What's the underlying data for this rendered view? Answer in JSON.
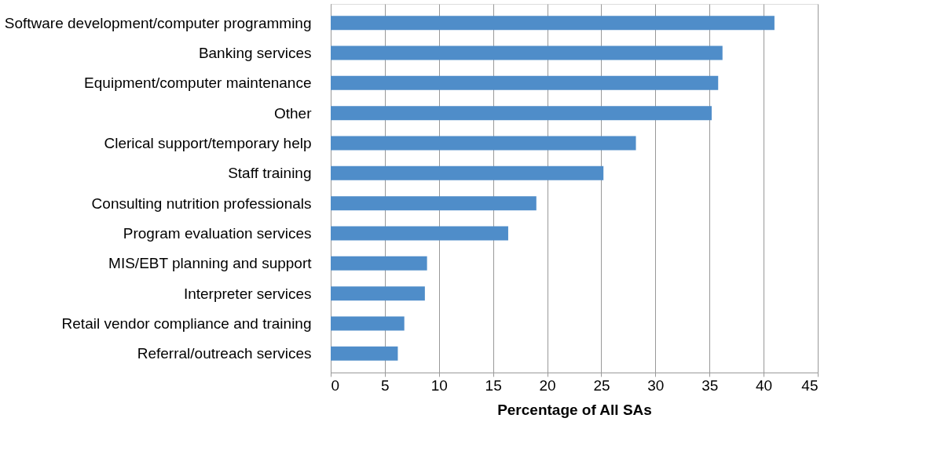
{
  "chart_data": {
    "type": "bar",
    "orientation": "horizontal",
    "xlabel": "Percentage of All SAs",
    "categories": [
      "Software development/computer programming",
      "Banking services",
      "Equipment/computer maintenance",
      "Other",
      "Clerical support/temporary help",
      "Staff training",
      "Consulting nutrition professionals",
      "Program evaluation services",
      "MIS/EBT planning and support",
      "Interpreter services",
      "Retail vendor compliance and training",
      "Referral/outreach services"
    ],
    "values": [
      41.0,
      36.2,
      35.8,
      35.2,
      28.2,
      25.2,
      19.0,
      16.4,
      8.9,
      8.7,
      6.8,
      6.2
    ],
    "color": "#4f8dc9",
    "xlim": [
      0,
      45
    ],
    "xticks": [
      0,
      5,
      10,
      15,
      20,
      25,
      30,
      35,
      40,
      45
    ],
    "grid": "x"
  }
}
